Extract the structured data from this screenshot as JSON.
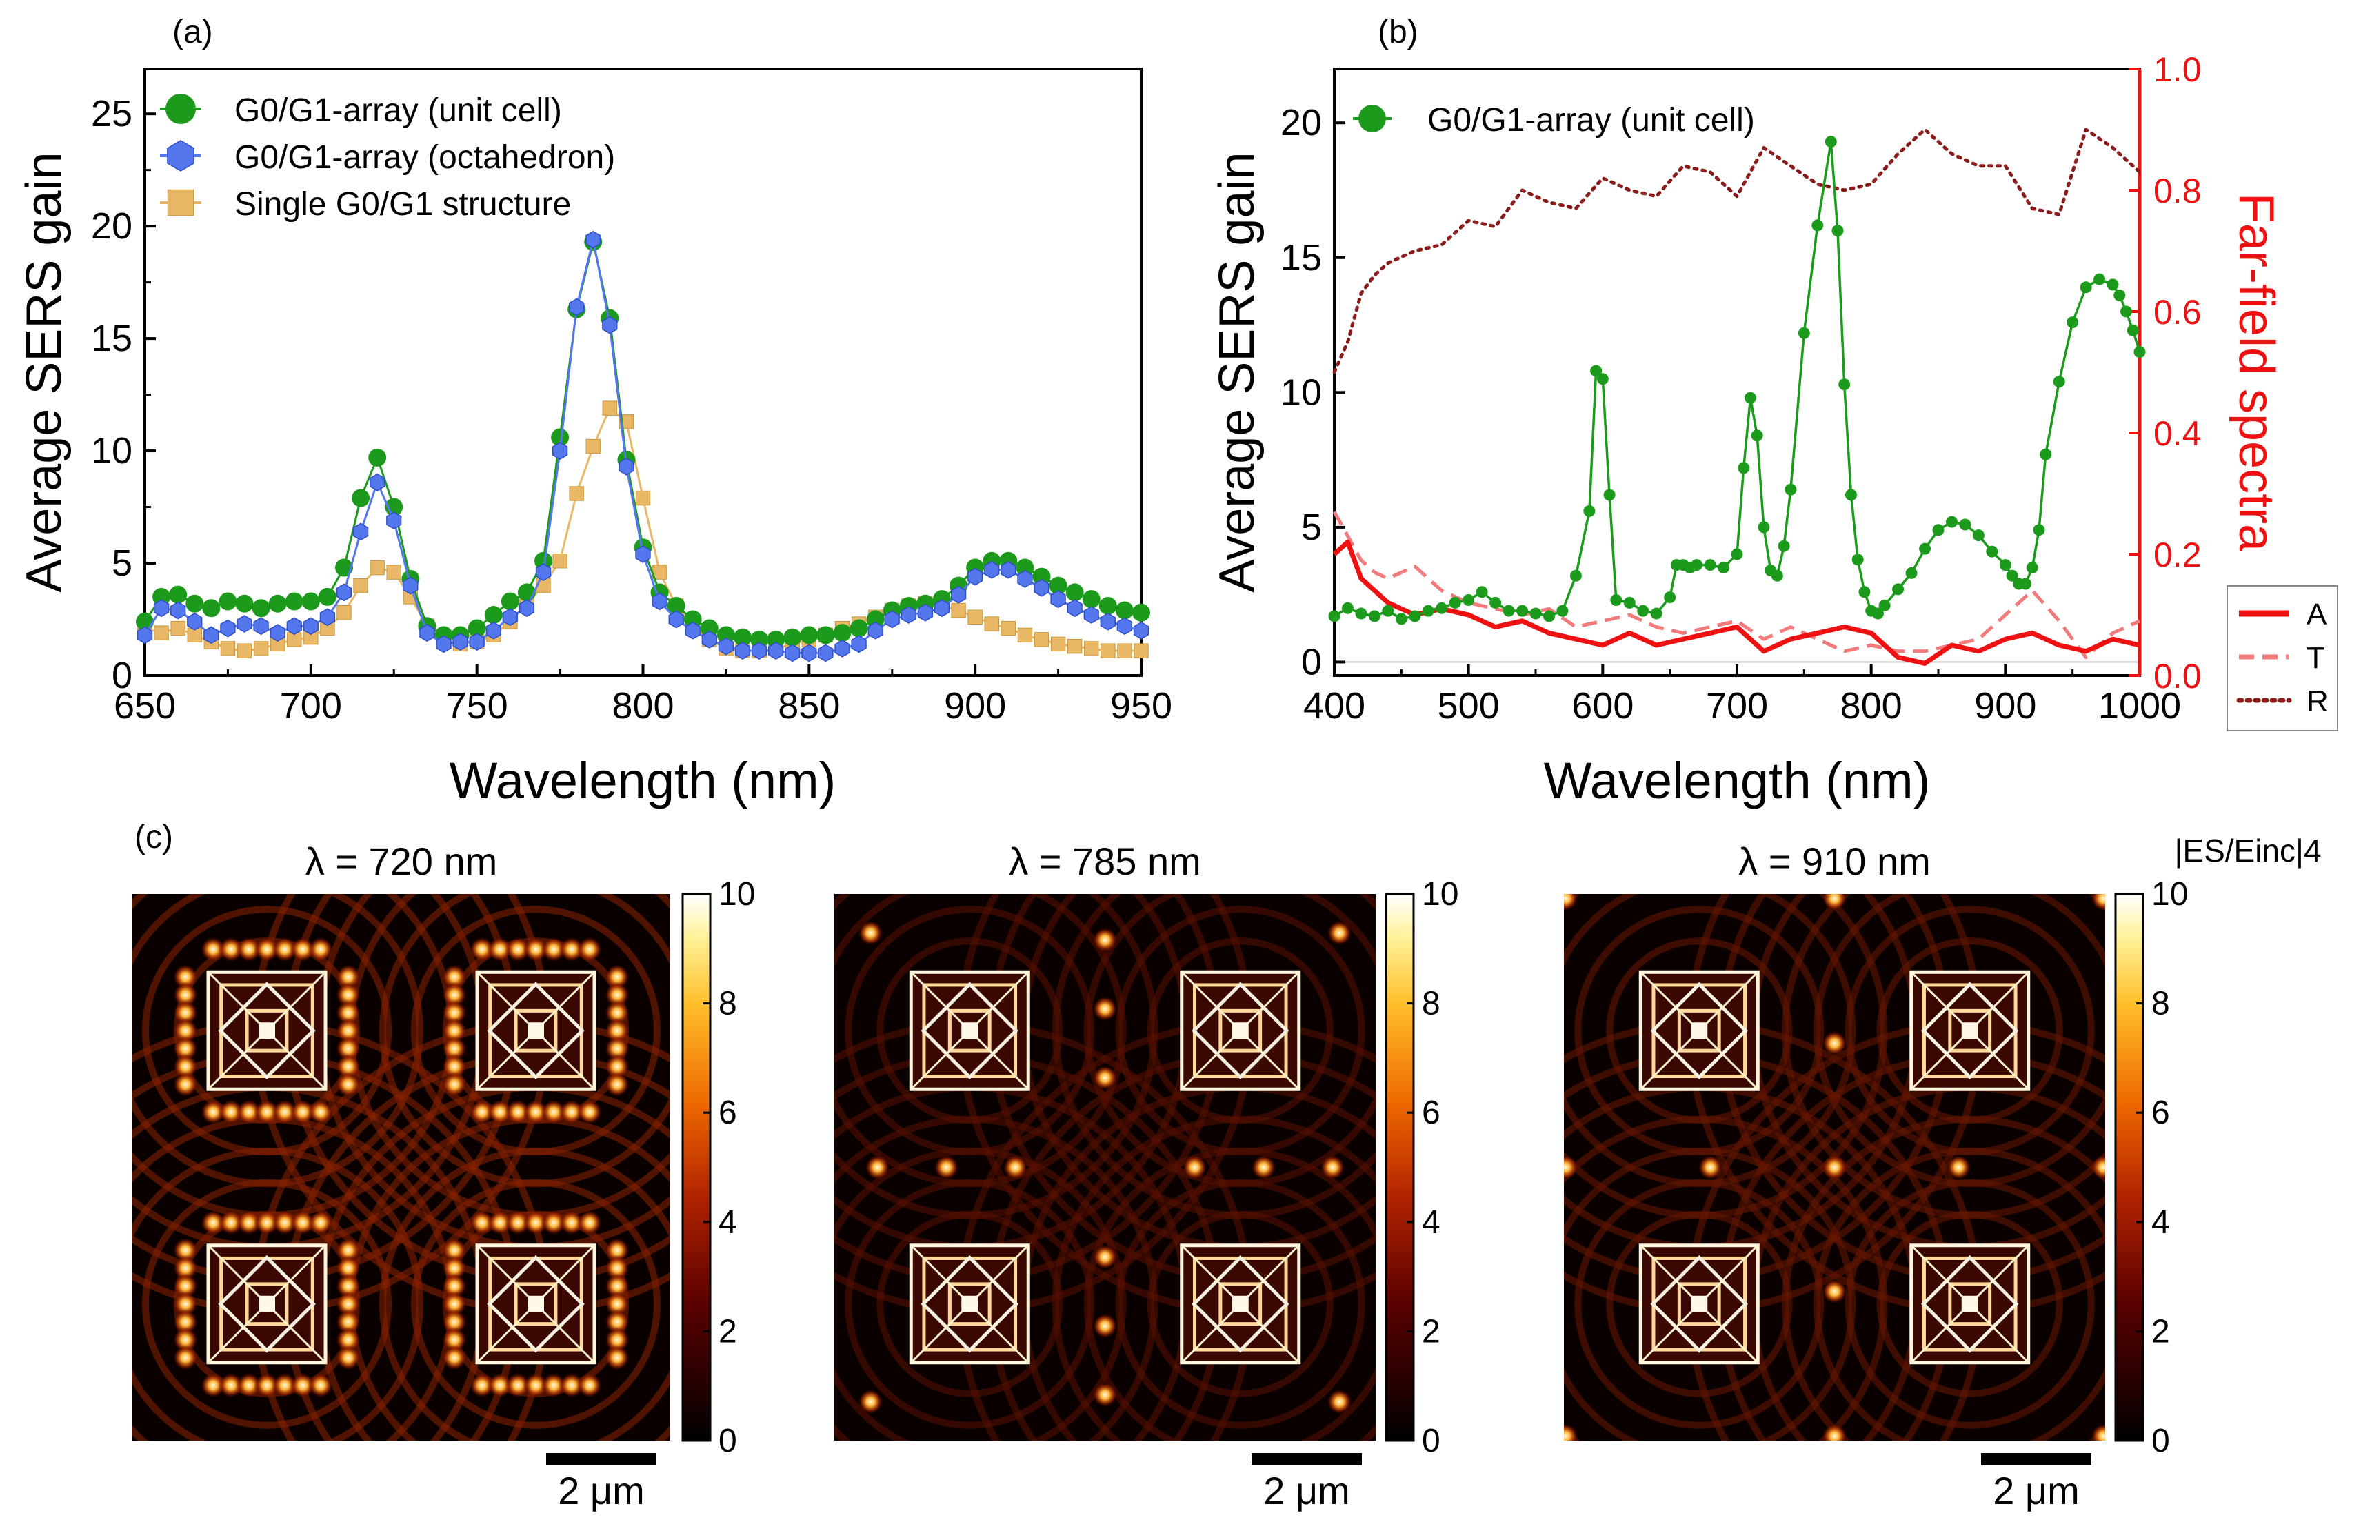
{
  "panels": [
    {
      "id": "a",
      "label": "(a)",
      "chart": "fig_a"
    },
    {
      "id": "b",
      "label": "(b)",
      "chart": "fig_b"
    },
    {
      "id": "c",
      "label": "(c)",
      "chart": "fig_c"
    }
  ],
  "colors": {
    "green": "#1b9a1b",
    "blue": "#5577ee",
    "gold": "#e8b866",
    "red": "#ee1111",
    "pink": "#f27a7a",
    "darkred": "#8b1c1c"
  },
  "chart_data": [
    {
      "id": "fig_a",
      "type": "line",
      "xlabel": "Wavelength (nm)",
      "ylabel": "Average SERS gain",
      "xlim": [
        650,
        950
      ],
      "ylim": [
        0,
        27
      ],
      "xticks": [
        650,
        700,
        750,
        800,
        850,
        900,
        950
      ],
      "yticks": [
        0,
        5,
        10,
        15,
        20,
        25
      ],
      "legend_position": "top-left",
      "x": [
        650,
        655,
        660,
        665,
        670,
        675,
        680,
        685,
        690,
        695,
        700,
        705,
        710,
        715,
        720,
        725,
        730,
        735,
        740,
        745,
        750,
        755,
        760,
        765,
        770,
        775,
        780,
        785,
        790,
        795,
        800,
        805,
        810,
        815,
        820,
        825,
        830,
        835,
        840,
        845,
        850,
        855,
        860,
        865,
        870,
        875,
        880,
        885,
        890,
        895,
        900,
        905,
        910,
        915,
        920,
        925,
        930,
        935,
        940,
        945,
        950
      ],
      "series": [
        {
          "name": "G0/G1-array (unit cell)",
          "marker": "circle",
          "color": "#1b9a1b",
          "values": [
            2.4,
            3.5,
            3.6,
            3.2,
            3.0,
            3.3,
            3.2,
            3.0,
            3.2,
            3.3,
            3.3,
            3.5,
            4.8,
            7.9,
            9.7,
            7.5,
            4.3,
            2.2,
            1.8,
            1.8,
            2.1,
            2.7,
            3.3,
            3.7,
            5.1,
            10.6,
            16.3,
            19.3,
            15.9,
            9.6,
            5.7,
            3.7,
            3.1,
            2.5,
            2.1,
            1.8,
            1.7,
            1.6,
            1.6,
            1.7,
            1.8,
            1.8,
            1.9,
            2.1,
            2.5,
            2.9,
            3.1,
            3.2,
            3.4,
            4.0,
            4.8,
            5.1,
            5.1,
            4.8,
            4.4,
            4.0,
            3.7,
            3.4,
            3.1,
            2.9,
            2.8
          ]
        },
        {
          "name": "G0/G1-array (octahedron)",
          "marker": "hexagon",
          "color": "#5577ee",
          "values": [
            1.8,
            3.0,
            2.9,
            2.4,
            1.8,
            2.1,
            2.3,
            2.2,
            1.9,
            2.2,
            2.2,
            2.6,
            3.7,
            6.4,
            8.6,
            6.9,
            4.0,
            1.9,
            1.4,
            1.5,
            1.5,
            2.0,
            2.6,
            3.0,
            4.6,
            10.0,
            16.4,
            19.4,
            15.6,
            9.3,
            5.4,
            3.3,
            2.5,
            2.0,
            1.6,
            1.3,
            1.1,
            1.1,
            1.1,
            1.0,
            1.0,
            1.0,
            1.2,
            1.4,
            2.0,
            2.5,
            2.7,
            2.8,
            3.0,
            3.6,
            4.4,
            4.7,
            4.7,
            4.3,
            3.9,
            3.4,
            3.0,
            2.7,
            2.4,
            2.2,
            2.0
          ]
        },
        {
          "name": "Single G0/G1 structure",
          "marker": "square",
          "color": "#e8b866",
          "values": [
            2.1,
            1.9,
            2.1,
            1.8,
            1.5,
            1.2,
            1.1,
            1.2,
            1.4,
            1.6,
            1.7,
            2.1,
            2.8,
            4.0,
            4.8,
            4.6,
            3.5,
            2.2,
            1.5,
            1.4,
            1.5,
            1.8,
            2.4,
            3.2,
            4.0,
            5.1,
            8.1,
            10.2,
            11.9,
            11.3,
            7.9,
            4.6,
            3.1,
            2.2,
            1.6,
            1.2,
            1.1,
            1.1,
            1.2,
            1.4,
            1.6,
            1.8,
            2.1,
            2.3,
            2.6,
            2.9,
            3.1,
            3.2,
            3.1,
            2.9,
            2.6,
            2.3,
            2.1,
            1.8,
            1.6,
            1.4,
            1.3,
            1.2,
            1.1,
            1.1,
            1.1
          ]
        }
      ]
    },
    {
      "id": "fig_b",
      "type": "line",
      "xlabel": "Wavelength (nm)",
      "ylabel": "Average SERS gain",
      "y2label": "Far-field spectra",
      "xlim": [
        400,
        1000
      ],
      "ylim": [
        -0.5,
        22
      ],
      "y2lim": [
        0,
        1.0
      ],
      "xticks": [
        400,
        500,
        600,
        700,
        800,
        900,
        1000
      ],
      "yticks": [
        0,
        5,
        10,
        15,
        20
      ],
      "y2ticks": [
        0.0,
        0.2,
        0.4,
        0.6,
        0.8,
        1.0
      ],
      "series": [
        {
          "name": "G0/G1-array (unit cell)",
          "axis": "left",
          "marker": "circle",
          "color": "#1b9a1b",
          "x": [
            400,
            410,
            420,
            430,
            440,
            450,
            460,
            470,
            480,
            490,
            500,
            510,
            520,
            530,
            540,
            550,
            560,
            570,
            580,
            590,
            595,
            600,
            605,
            610,
            620,
            630,
            640,
            650,
            655,
            660,
            665,
            670,
            680,
            690,
            700,
            705,
            710,
            715,
            720,
            725,
            730,
            735,
            740,
            750,
            760,
            770,
            775,
            780,
            785,
            790,
            795,
            800,
            805,
            810,
            820,
            830,
            840,
            850,
            860,
            870,
            880,
            890,
            900,
            905,
            910,
            915,
            920,
            925,
            930,
            940,
            950,
            960,
            970,
            980,
            985,
            990,
            995,
            1000
          ],
          "values": [
            1.7,
            2.0,
            1.8,
            1.7,
            1.9,
            1.6,
            1.7,
            1.9,
            2.0,
            2.2,
            2.3,
            2.6,
            2.2,
            1.9,
            1.9,
            1.8,
            1.7,
            1.9,
            3.2,
            5.6,
            10.8,
            10.5,
            6.2,
            2.3,
            2.2,
            1.9,
            1.8,
            2.4,
            3.6,
            3.6,
            3.5,
            3.6,
            3.6,
            3.5,
            4.0,
            7.2,
            9.8,
            8.4,
            5.0,
            3.4,
            3.2,
            4.3,
            6.4,
            12.2,
            16.2,
            19.3,
            16.0,
            10.3,
            6.2,
            3.8,
            2.6,
            1.9,
            1.8,
            2.1,
            2.7,
            3.3,
            4.2,
            4.9,
            5.2,
            5.1,
            4.7,
            4.1,
            3.6,
            3.2,
            2.9,
            2.9,
            3.5,
            4.9,
            7.7,
            10.4,
            12.6,
            13.9,
            14.2,
            14.0,
            13.6,
            13.0,
            12.3,
            11.5
          ]
        },
        {
          "name": "A",
          "axis": "right",
          "style": "solid",
          "color": "#ee1111",
          "x": [
            400,
            410,
            420,
            430,
            440,
            460,
            480,
            500,
            520,
            540,
            560,
            580,
            600,
            620,
            640,
            660,
            680,
            700,
            720,
            740,
            760,
            780,
            800,
            820,
            840,
            860,
            880,
            900,
            920,
            940,
            960,
            980,
            1000
          ],
          "values": [
            0.2,
            0.22,
            0.16,
            0.14,
            0.12,
            0.1,
            0.11,
            0.1,
            0.08,
            0.09,
            0.07,
            0.06,
            0.05,
            0.07,
            0.05,
            0.06,
            0.07,
            0.08,
            0.04,
            0.06,
            0.07,
            0.08,
            0.07,
            0.03,
            0.02,
            0.05,
            0.04,
            0.06,
            0.07,
            0.05,
            0.04,
            0.06,
            0.05
          ]
        },
        {
          "name": "T",
          "axis": "right",
          "style": "dashed",
          "color": "#f27a7a",
          "x": [
            400,
            410,
            420,
            430,
            440,
            460,
            480,
            500,
            520,
            540,
            560,
            580,
            600,
            620,
            640,
            660,
            680,
            700,
            720,
            740,
            760,
            780,
            800,
            820,
            840,
            860,
            880,
            900,
            920,
            940,
            960,
            980,
            1000
          ],
          "values": [
            0.27,
            0.23,
            0.19,
            0.17,
            0.16,
            0.18,
            0.14,
            0.12,
            0.11,
            0.1,
            0.11,
            0.08,
            0.09,
            0.1,
            0.08,
            0.07,
            0.08,
            0.09,
            0.06,
            0.08,
            0.06,
            0.04,
            0.05,
            0.04,
            0.04,
            0.05,
            0.06,
            0.1,
            0.14,
            0.09,
            0.03,
            0.07,
            0.09
          ]
        },
        {
          "name": "R",
          "axis": "right",
          "style": "dotted",
          "color": "#8b1c1c",
          "x": [
            400,
            410,
            420,
            430,
            440,
            460,
            480,
            500,
            520,
            540,
            560,
            580,
            600,
            620,
            640,
            660,
            680,
            700,
            720,
            740,
            760,
            780,
            800,
            820,
            840,
            860,
            880,
            900,
            920,
            940,
            960,
            980,
            1000
          ],
          "values": [
            0.5,
            0.55,
            0.63,
            0.66,
            0.68,
            0.7,
            0.71,
            0.75,
            0.74,
            0.8,
            0.78,
            0.77,
            0.82,
            0.8,
            0.79,
            0.84,
            0.83,
            0.79,
            0.87,
            0.84,
            0.81,
            0.8,
            0.81,
            0.86,
            0.9,
            0.86,
            0.84,
            0.84,
            0.77,
            0.76,
            0.9,
            0.87,
            0.83
          ]
        }
      ]
    },
    {
      "id": "fig_c",
      "type": "heatmap",
      "colorbar_title": "|ES/Einc|4",
      "colorbar_ticks": [
        0,
        2,
        4,
        6,
        8,
        10
      ],
      "vmin": 0,
      "vmax": 10,
      "scale_bar": "2 μm",
      "maps": [
        {
          "title": "λ = 720 nm",
          "wavelength_nm": 720
        },
        {
          "title": "λ = 785 nm",
          "wavelength_nm": 785
        },
        {
          "title": "λ = 910 nm",
          "wavelength_nm": 910
        }
      ]
    }
  ]
}
